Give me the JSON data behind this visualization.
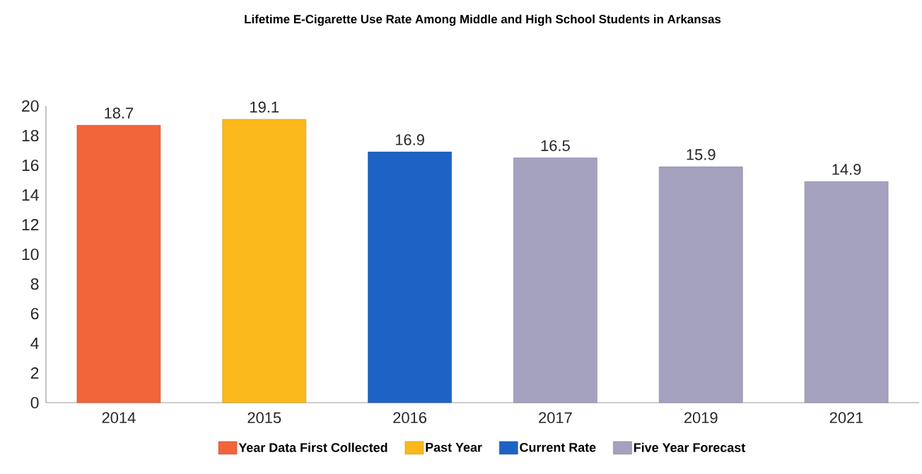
{
  "chart_data": {
    "type": "bar",
    "title": "Lifetime E-Cigarette Use Rate Among Middle and High School Students in Arkansas",
    "categories": [
      "2014",
      "2015",
      "2016",
      "2017",
      "2019",
      "2021"
    ],
    "series": [
      {
        "name": "Year Data First Collected",
        "color": "#f2643a",
        "values": [
          18.7,
          null,
          null,
          null,
          null,
          null
        ]
      },
      {
        "name": "Past Year",
        "color": "#fbb81b",
        "values": [
          null,
          19.1,
          null,
          null,
          null,
          null
        ]
      },
      {
        "name": "Current Rate",
        "color": "#1d63c6",
        "values": [
          null,
          null,
          16.9,
          null,
          null,
          null
        ]
      },
      {
        "name": "Five Year Forecast",
        "color": "#a4a2bf",
        "values": [
          null,
          null,
          null,
          16.5,
          15.9,
          14.9
        ]
      }
    ],
    "ylim": [
      0,
      20
    ],
    "yticks": [
      0,
      2,
      4,
      6,
      8,
      10,
      12,
      14,
      16,
      18,
      20
    ],
    "data_labels": true,
    "legend": "bottom"
  }
}
